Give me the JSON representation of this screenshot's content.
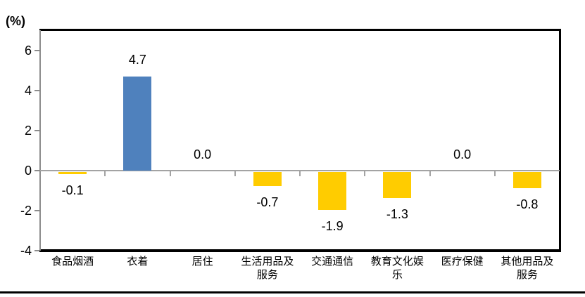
{
  "unit_label": "(%)",
  "chart_data": {
    "type": "bar",
    "title": "",
    "xlabel": "",
    "ylabel": "(%)",
    "categories": [
      "食品烟酒",
      "衣着",
      "居住",
      "生活用品及服务",
      "交通通信",
      "教育文化娱乐",
      "医疗保健",
      "其他用品及服务"
    ],
    "category_lines": [
      [
        "食品烟酒"
      ],
      [
        "衣着"
      ],
      [
        "居住"
      ],
      [
        "生活用品及",
        "服务"
      ],
      [
        "交通通信"
      ],
      [
        "教育文化娱",
        "乐"
      ],
      [
        "医疗保健"
      ],
      [
        "其他用品及",
        "服务"
      ]
    ],
    "values": [
      -0.1,
      4.7,
      0.0,
      -0.7,
      -1.9,
      -1.3,
      0.0,
      -0.8
    ],
    "value_labels": [
      "-0.1",
      "4.7",
      "0.0",
      "-0.7",
      "-1.9",
      "-1.3",
      "0.0",
      "-0.8"
    ],
    "ylim": [
      -4,
      7
    ],
    "yticks": [
      6,
      4,
      2,
      0,
      -2,
      -4
    ],
    "grid": false,
    "legend": false,
    "colors": {
      "positive_bar": "#4F81BD",
      "negative_bar": "#FFCC00",
      "axis_gray": "#8C8C8C",
      "zero_line_gray": "#A3A3A3",
      "border_black": "#000000",
      "text": "#000000"
    }
  }
}
